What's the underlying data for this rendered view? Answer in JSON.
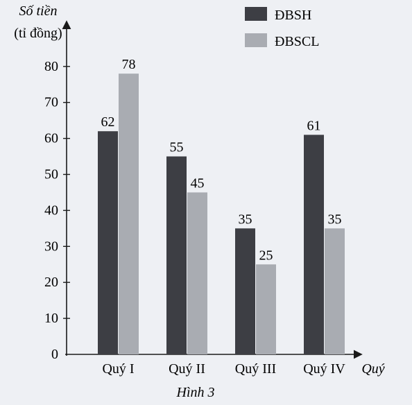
{
  "chart_data": {
    "type": "bar",
    "ylabel": "Số tiền\n(tỉ đồng)",
    "xlabel": "Quý",
    "caption": "Hình 3",
    "categories": [
      "Quý I",
      "Quý II",
      "Quý III",
      "Quý IV"
    ],
    "series": [
      {
        "name": "ĐBSH",
        "values": [
          62,
          55,
          35,
          61
        ],
        "color": "#3d3e44"
      },
      {
        "name": "ĐBSCL",
        "values": [
          78,
          45,
          25,
          35
        ],
        "color": "#a9acb2"
      }
    ],
    "ylim": [
      0,
      80
    ],
    "yticks": [
      0,
      10,
      20,
      30,
      40,
      50,
      60,
      70,
      80
    ],
    "data_labels": true,
    "grid": false,
    "legend": "top-right"
  }
}
